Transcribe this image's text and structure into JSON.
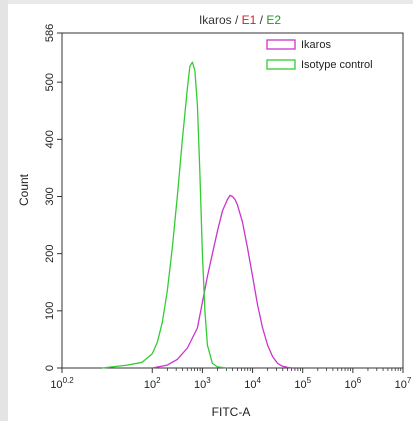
{
  "chart_data": {
    "type": "area",
    "title_parts": [
      {
        "text": "Ikaros",
        "color": "#333333"
      },
      {
        "text": " / ",
        "color": "#333333"
      },
      {
        "text": "E1",
        "color": "#d42020"
      },
      {
        "text": " / ",
        "color": "#333333"
      },
      {
        "text": "E2",
        "color": "#1f9a1f"
      }
    ],
    "xlabel": "FITC-A",
    "ylabel": "Count",
    "xscale": "log",
    "xlim": [
      0.2,
      7
    ],
    "ylim": [
      0,
      586
    ],
    "xticks": [
      {
        "exp": 0.2,
        "base": "10",
        "sup": "0.2"
      },
      {
        "exp": 2,
        "base": "10",
        "sup": "2"
      },
      {
        "exp": 3,
        "base": "10",
        "sup": "3"
      },
      {
        "exp": 4,
        "base": "10",
        "sup": "4"
      },
      {
        "exp": 5,
        "base": "10",
        "sup": "5"
      },
      {
        "exp": 6,
        "base": "10",
        "sup": "6"
      },
      {
        "exp": 7,
        "base": "10",
        "sup": "7"
      }
    ],
    "yticks": [
      0,
      100,
      200,
      300,
      400,
      500,
      586
    ],
    "legend_position": "top-right",
    "series": [
      {
        "name": "Ikaros",
        "color": "#cc33cc",
        "x": [
          2.0,
          2.3,
          2.5,
          2.7,
          2.9,
          3.0,
          3.1,
          3.2,
          3.3,
          3.4,
          3.5,
          3.55,
          3.6,
          3.65,
          3.7,
          3.8,
          3.9,
          4.0,
          4.1,
          4.2,
          4.3,
          4.4,
          4.5,
          4.6,
          4.7,
          4.8
        ],
        "y": [
          0,
          5,
          15,
          35,
          70,
          115,
          160,
          200,
          240,
          275,
          295,
          302,
          300,
          295,
          285,
          255,
          210,
          160,
          110,
          70,
          40,
          20,
          8,
          3,
          1,
          0
        ]
      },
      {
        "name": "Isotype control",
        "color": "#33cc33",
        "x": [
          1.0,
          1.5,
          1.8,
          2.0,
          2.1,
          2.2,
          2.3,
          2.4,
          2.5,
          2.6,
          2.7,
          2.75,
          2.8,
          2.85,
          2.9,
          2.95,
          3.0,
          3.05,
          3.1,
          3.2,
          3.3,
          3.5
        ],
        "y": [
          0,
          5,
          10,
          25,
          45,
          80,
          135,
          210,
          300,
          400,
          490,
          528,
          535,
          520,
          460,
          340,
          200,
          100,
          40,
          8,
          2,
          0
        ]
      }
    ]
  }
}
